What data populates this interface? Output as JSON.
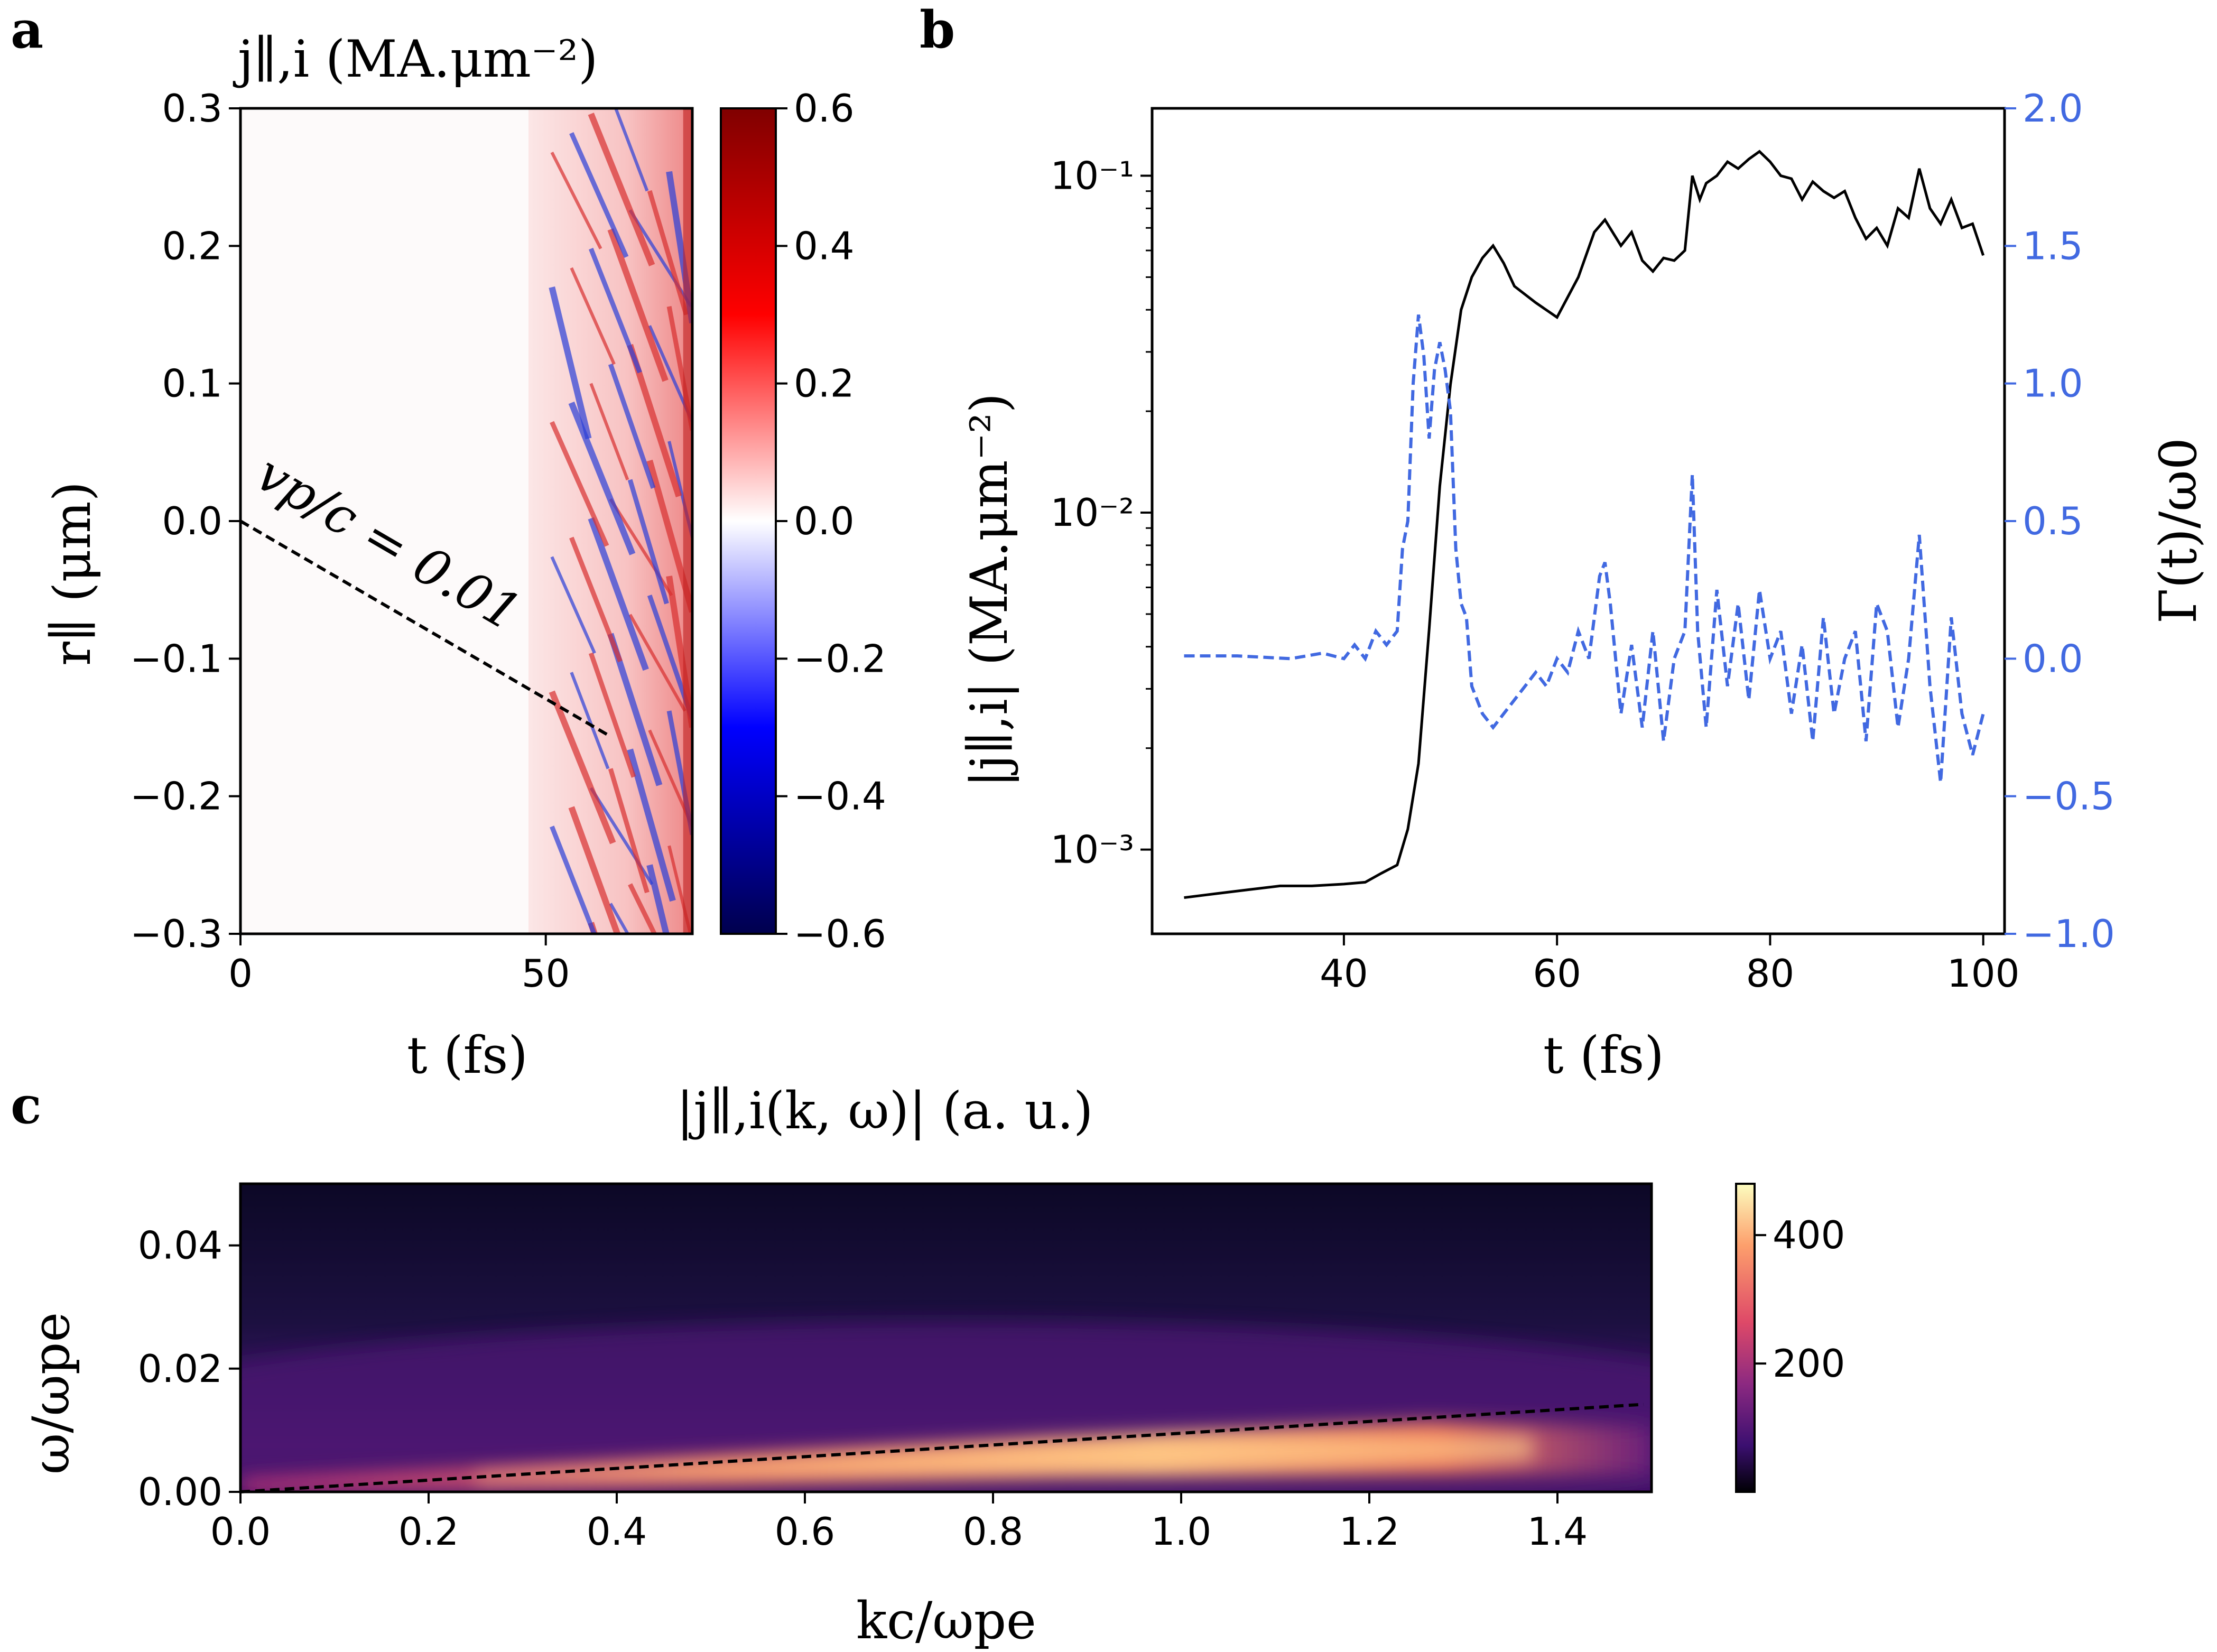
{
  "colors": {
    "axis": "#000000",
    "blue": "#4169e1",
    "seismic_low": "#00004d",
    "seismic_mid": "#ffffff",
    "seismic_high": "#800000"
  },
  "panel_labels": {
    "a": "a",
    "b": "b",
    "c": "c"
  },
  "chart_data": [
    {
      "id": "a",
      "type": "heatmap",
      "title": "j∥,i (MA.μm⁻²)",
      "xlabel": "t (fs)",
      "ylabel": "r∥ (μm)",
      "xlim": [
        0,
        74
      ],
      "ylim": [
        0.3,
        -0.3
      ],
      "xticks": [
        "0",
        "50"
      ],
      "yticks": [
        "−0.3",
        "−0.2",
        "−0.1",
        "0.0",
        "0.1",
        "0.2",
        "0.3"
      ],
      "colorbar": {
        "ticks": [
          "0.6",
          "0.4",
          "0.2",
          "0.0",
          "−0.2",
          "−0.4",
          "−0.6"
        ],
        "range": [
          -0.6,
          0.6
        ]
      },
      "annotation": {
        "text": "vp/c = 0.01",
        "line": {
          "x": [
            0,
            60
          ],
          "y": [
            0.0,
            -0.155
          ]
        }
      },
      "field_notes": "Near-zero for t < 48 fs; oblique blue/red striations for 48–74 fs"
    },
    {
      "id": "b",
      "type": "line",
      "xlabel": "t (fs)",
      "ylabel_left": "|j∥,i| (MA.μm⁻²)",
      "ylabel_right": "Γ(t)/ω0",
      "xlim": [
        22,
        102
      ],
      "xticks": [
        "40",
        "60",
        "80",
        "100"
      ],
      "yticks_left": [
        "10⁻¹",
        "10⁻²",
        "10⁻³"
      ],
      "yticks_right": [
        "2.0",
        "1.5",
        "1.0",
        "0.5",
        "0.0",
        "−0.5",
        "−1.0"
      ],
      "ylim_left_log10": [
        -3.25,
        -0.8
      ],
      "ylim_right": [
        -1.0,
        2.0
      ],
      "series": [
        {
          "name": "|j∥,i|",
          "axis": "left",
          "style": "solid",
          "x": [
            25,
            28,
            31,
            34,
            37,
            40,
            42,
            43.5,
            45,
            46,
            47,
            48,
            49,
            50,
            51,
            52,
            53,
            54,
            55,
            56,
            58,
            60,
            62,
            63.5,
            64.5,
            66,
            67,
            68,
            69,
            70,
            71,
            72,
            72.7,
            73.4,
            74,
            75,
            76,
            77,
            78,
            79,
            80,
            81,
            82,
            83,
            84,
            85,
            86,
            87,
            88,
            89,
            90,
            91,
            92,
            93,
            94,
            95,
            96,
            97,
            98,
            99,
            100
          ],
          "y": [
            0.00072,
            0.00074,
            0.00076,
            0.00078,
            0.00078,
            0.00079,
            0.0008,
            0.00085,
            0.0009,
            0.00115,
            0.0018,
            0.0045,
            0.012,
            0.024,
            0.04,
            0.05,
            0.057,
            0.062,
            0.055,
            0.047,
            0.042,
            0.038,
            0.05,
            0.068,
            0.074,
            0.062,
            0.068,
            0.056,
            0.052,
            0.057,
            0.056,
            0.06,
            0.1,
            0.085,
            0.095,
            0.1,
            0.11,
            0.105,
            0.112,
            0.118,
            0.11,
            0.1,
            0.098,
            0.085,
            0.096,
            0.09,
            0.086,
            0.09,
            0.075,
            0.065,
            0.07,
            0.062,
            0.08,
            0.075,
            0.105,
            0.08,
            0.072,
            0.085,
            0.07,
            0.072,
            0.058
          ]
        },
        {
          "name": "Γ(t)/ω0",
          "axis": "right",
          "style": "dashed",
          "x": [
            25,
            30,
            35,
            38,
            40,
            41,
            42,
            43,
            44,
            45,
            45.5,
            46,
            46.5,
            47,
            47.5,
            48,
            48.5,
            49,
            49.5,
            50,
            50.5,
            51,
            51.5,
            52,
            53,
            54,
            55,
            56,
            57,
            58,
            59,
            60,
            61,
            62,
            63,
            64,
            64.5,
            65,
            66,
            67,
            68,
            69,
            70,
            71,
            72,
            72.7,
            73.2,
            74,
            75,
            76,
            77,
            78,
            79,
            80,
            81,
            82,
            83,
            84,
            85,
            86,
            87,
            88,
            89,
            90,
            91,
            92,
            93,
            94,
            95,
            96,
            97,
            98,
            99,
            100
          ],
          "y": [
            0.01,
            0.01,
            0.0,
            0.02,
            0.0,
            0.05,
            0.0,
            0.1,
            0.05,
            0.1,
            0.4,
            0.5,
            1.0,
            1.25,
            1.1,
            0.8,
            1.05,
            1.15,
            1.05,
            0.9,
            0.4,
            0.2,
            0.15,
            -0.1,
            -0.2,
            -0.25,
            -0.2,
            -0.15,
            -0.1,
            -0.05,
            -0.1,
            0.0,
            -0.05,
            0.1,
            0.0,
            0.3,
            0.35,
            0.2,
            -0.2,
            0.05,
            -0.25,
            0.1,
            -0.3,
            0.0,
            0.1,
            0.67,
            0.1,
            -0.25,
            0.25,
            -0.1,
            0.2,
            -0.15,
            0.25,
            0.0,
            0.1,
            -0.2,
            0.05,
            -0.3,
            0.15,
            -0.2,
            0.0,
            0.1,
            -0.3,
            0.2,
            0.1,
            -0.25,
            0.0,
            0.45,
            -0.1,
            -0.45,
            0.15,
            -0.2,
            -0.35,
            -0.2
          ]
        }
      ]
    },
    {
      "id": "c",
      "type": "heatmap",
      "title": "|j∥,i(k, ω)| (a. u.)",
      "xlabel": "kc/ωpe",
      "ylabel": "ω/ωpe",
      "xlim": [
        0.0,
        1.5
      ],
      "ylim": [
        0.0,
        0.05
      ],
      "xticks": [
        "0.0",
        "0.2",
        "0.4",
        "0.6",
        "0.8",
        "1.0",
        "1.2",
        "1.4"
      ],
      "yticks": [
        "0.00",
        "0.02",
        "0.04"
      ],
      "colorbar": {
        "ticks": [
          "400",
          "200"
        ],
        "range": [
          0,
          480
        ]
      },
      "dashed_line": {
        "x": [
          0.0,
          1.5
        ],
        "y": [
          0.0,
          0.0142
        ]
      }
    }
  ]
}
